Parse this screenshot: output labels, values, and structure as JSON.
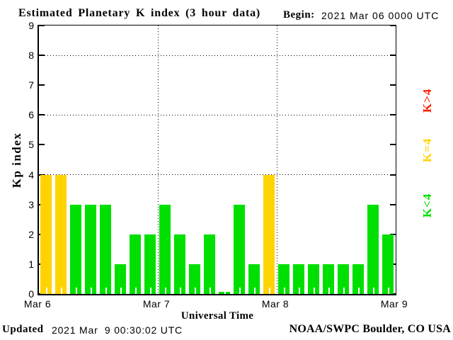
{
  "header": {
    "title": "Estimated Planetary K index (3 hour data)",
    "begin_label": "Begin:",
    "begin_value": "2021 Mar 06 0000 UTC"
  },
  "axes": {
    "y_title": "Kp index",
    "x_title": "Universal Time",
    "y_ticks": [
      0,
      1,
      2,
      3,
      4,
      5,
      6,
      7,
      8,
      9
    ],
    "y_gridlines": [
      4,
      6,
      8
    ],
    "y_max": 9,
    "x_day_labels": [
      "Mar 6",
      "Mar 7",
      "Mar 8",
      "Mar 9"
    ]
  },
  "chart_data": {
    "type": "bar",
    "title": "Estimated Planetary K index (3 hour data)",
    "begin": "2021 Mar 06 0000 UTC",
    "xlabel": "Universal Time",
    "ylabel": "Kp index",
    "ylim": [
      0,
      9
    ],
    "interval_hours": 3,
    "days": [
      "Mar 6",
      "Mar 7",
      "Mar 8"
    ],
    "bars_per_day": 8,
    "values": [
      4,
      4,
      3,
      3,
      3,
      1,
      2,
      2,
      3,
      2,
      1,
      2,
      0,
      3,
      1,
      4,
      1,
      1,
      1,
      1,
      1,
      1,
      3,
      2
    ],
    "color_rule": {
      "below_4": "green",
      "equal_4": "yellow",
      "above_4": "red"
    },
    "grid": "dotted horizontal at 4,6,8; dotted vertical at day boundaries",
    "legend_position": "right, rotated"
  },
  "legend": {
    "items": [
      {
        "label": "K>4",
        "color": "#ff2200"
      },
      {
        "label": "K=4",
        "color": "#ffd300"
      },
      {
        "label": "K<4",
        "color": "#00e000"
      }
    ]
  },
  "colors": {
    "bar_green": "#00e000",
    "bar_yellow": "#ffd300",
    "bar_red": "#ff2200",
    "axis": "#000000",
    "background": "#ffffff"
  },
  "footer": {
    "updated_label": "Updated",
    "updated_value": "2021 Mar  9 00:30:02 UTC",
    "credit": "NOAA/SWPC Boulder, CO USA"
  }
}
